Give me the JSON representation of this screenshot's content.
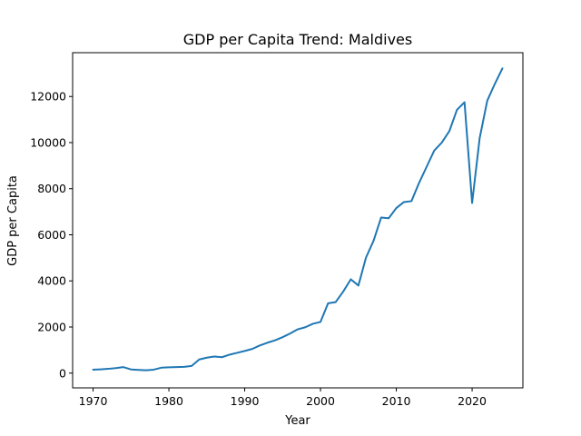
{
  "chart_data": {
    "type": "line",
    "title": "GDP per Capita Trend: Maldives",
    "xlabel": "Year",
    "ylabel": "GDP per Capita",
    "xlim": [
      1967.3,
      2026.7
    ],
    "ylim": [
      -640,
      13900
    ],
    "xticks": [
      1970,
      1980,
      1990,
      2000,
      2010,
      2020
    ],
    "yticks": [
      0,
      2000,
      4000,
      6000,
      8000,
      10000,
      12000
    ],
    "grid": false,
    "series": [
      {
        "color": "#1f77b4",
        "x": [
          1970,
          1971,
          1972,
          1973,
          1974,
          1975,
          1976,
          1977,
          1978,
          1979,
          1980,
          1981,
          1982,
          1983,
          1984,
          1985,
          1986,
          1987,
          1988,
          1989,
          1990,
          1991,
          1992,
          1993,
          1994,
          1995,
          1996,
          1997,
          1998,
          1999,
          2000,
          2001,
          2002,
          2003,
          2004,
          2005,
          2006,
          2007,
          2008,
          2009,
          2010,
          2011,
          2012,
          2013,
          2014,
          2015,
          2016,
          2017,
          2018,
          2019,
          2020,
          2021,
          2022,
          2023,
          2024
        ],
        "values": [
          150,
          165,
          185,
          215,
          260,
          160,
          140,
          125,
          150,
          235,
          250,
          260,
          270,
          310,
          590,
          670,
          720,
          690,
          800,
          880,
          960,
          1050,
          1200,
          1320,
          1420,
          1560,
          1720,
          1900,
          1990,
          2140,
          2220,
          3030,
          3080,
          3540,
          4070,
          3800,
          5010,
          5740,
          6750,
          6720,
          7160,
          7420,
          7460,
          8250,
          8950,
          9650,
          10000,
          10500,
          11420,
          11750,
          7380,
          10200,
          11820,
          12550,
          13220
        ]
      }
    ]
  }
}
